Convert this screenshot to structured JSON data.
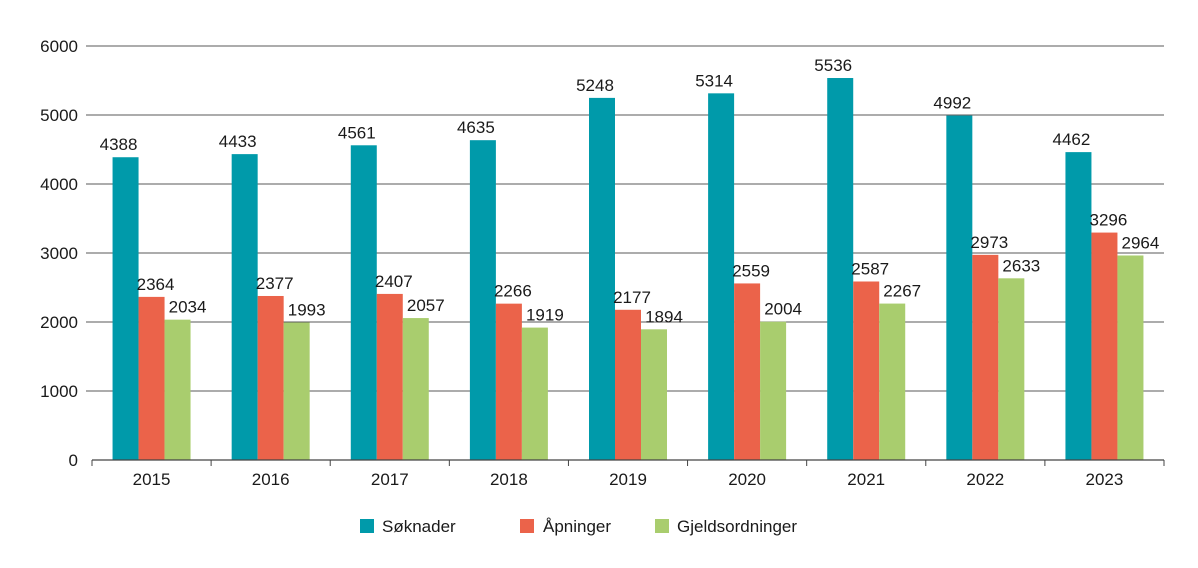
{
  "chart_data": {
    "type": "bar",
    "categories": [
      "2015",
      "2016",
      "2017",
      "2018",
      "2019",
      "2020",
      "2021",
      "2022",
      "2023"
    ],
    "series": [
      {
        "name": "Søknader",
        "color": "#009aaa",
        "values": [
          4388,
          4433,
          4561,
          4635,
          5248,
          5314,
          5536,
          4992,
          4462
        ]
      },
      {
        "name": "Åpninger",
        "color": "#eb634a",
        "values": [
          2364,
          2377,
          2407,
          2266,
          2177,
          2559,
          2587,
          2973,
          3296
        ]
      },
      {
        "name": "Gjeldsordninger",
        "color": "#a9cd6e",
        "values": [
          2034,
          1993,
          2057,
          1919,
          1894,
          2004,
          2267,
          2633,
          2964
        ]
      }
    ],
    "y_ticks": [
      "0",
      "1000",
      "2000",
      "3000",
      "4000",
      "5000",
      "6000"
    ],
    "ylim": [
      0,
      6000
    ],
    "grid": "horizontal",
    "legend": "bottom-center",
    "title": "",
    "xlabel": "",
    "ylabel": ""
  }
}
